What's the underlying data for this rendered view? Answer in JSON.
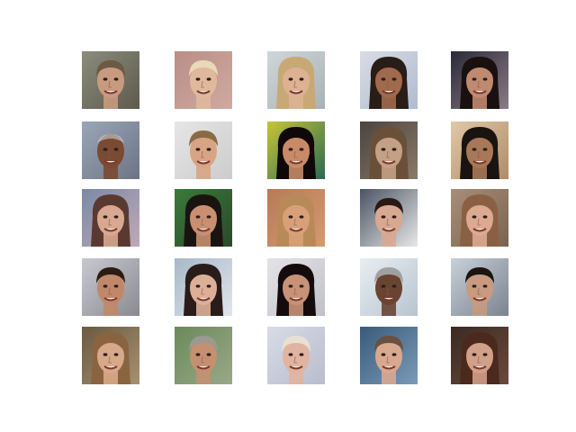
{
  "figure": {
    "background": "#ffffff",
    "rows": 5,
    "cols": 5,
    "tiles": [
      {
        "bg": "#8a8c7c",
        "bg2": "#5e5a4c",
        "skin": "#c89a80",
        "hair": "#6b5a44",
        "hair_style": "short"
      },
      {
        "bg": "#b98e86",
        "bg2": "#cfaaa0",
        "skin": "#e0b89c",
        "hair": "#e8d9b8",
        "hair_style": "short"
      },
      {
        "bg": "#cfd6d8",
        "bg2": "#a8b2b6",
        "skin": "#dcb293",
        "hair": "#c8a874",
        "hair_style": "long"
      },
      {
        "bg": "#d8dce4",
        "bg2": "#b0bcd0",
        "skin": "#a06a4c",
        "hair": "#2a1c16",
        "hair_style": "long"
      },
      {
        "bg": "#2a2a38",
        "bg2": "#8a7c84",
        "skin": "#c08a70",
        "hair": "#1a1010",
        "hair_style": "long"
      },
      {
        "bg": "#9aa6b8",
        "bg2": "#6c7484",
        "skin": "#7a4a32",
        "hair": "#cfcfcf",
        "hair_style": "bald"
      },
      {
        "bg": "#e6e6e6",
        "bg2": "#cccccc",
        "skin": "#d8a484",
        "hair": "#8a6a44",
        "hair_style": "short"
      },
      {
        "bg": "#c8c438",
        "bg2": "#2a6a52",
        "skin": "#c88a68",
        "hair": "#100808",
        "hair_style": "long"
      },
      {
        "bg": "#4a4440",
        "bg2": "#8a7a68",
        "skin": "#c4a084",
        "hair": "#6a5038",
        "hair_style": "long"
      },
      {
        "bg": "#e0c8a8",
        "bg2": "#b08c68",
        "skin": "#a87858",
        "hair": "#1a1410",
        "hair_style": "long"
      },
      {
        "bg": "#7a8aa6",
        "bg2": "#c0a8b8",
        "skin": "#d8a890",
        "hair": "#5a3a30",
        "hair_style": "long"
      },
      {
        "bg": "#3a7a3a",
        "bg2": "#2a4a2a",
        "skin": "#c89070",
        "hair": "#1a1410",
        "hair_style": "long"
      },
      {
        "bg": "#b87a58",
        "bg2": "#d49a70",
        "skin": "#d8a078",
        "hair": "#b88a58",
        "hair_style": "long"
      },
      {
        "bg": "#4a5464",
        "bg2": "#e8e8e8",
        "skin": "#d8a890",
        "hair": "#2a1a14",
        "hair_style": "short"
      },
      {
        "bg": "#a88e78",
        "bg2": "#7a6450",
        "skin": "#dcaa90",
        "hair": "#8a6044",
        "hair_style": "long"
      },
      {
        "bg": "#c8c8d0",
        "bg2": "#8a8a90",
        "skin": "#c08868",
        "hair": "#2a1c14",
        "hair_style": "short"
      },
      {
        "bg": "#a8b8c8",
        "bg2": "#e0e6ec",
        "skin": "#dcb098",
        "hair": "#2a1c18",
        "hair_style": "long"
      },
      {
        "bg": "#e4e4e8",
        "bg2": "#c0c0c8",
        "skin": "#c89278",
        "hair": "#140c0c",
        "hair_style": "long"
      },
      {
        "bg": "#e8eef2",
        "bg2": "#b8c4d0",
        "skin": "#6a4432",
        "hair": "#a0a0a0",
        "hair_style": "short"
      },
      {
        "bg": "#c8d0d8",
        "bg2": "#7a8490",
        "skin": "#c89a80",
        "hair": "#1c1410",
        "hair_style": "short"
      },
      {
        "bg": "#6a5a40",
        "bg2": "#a89070",
        "skin": "#d8a88a",
        "hair": "#8a6440",
        "hair_style": "long"
      },
      {
        "bg": "#6a8a5a",
        "bg2": "#9aa888",
        "skin": "#c49070",
        "hair": "#9a9a90",
        "hair_style": "short"
      },
      {
        "bg": "#d8dce8",
        "bg2": "#b8bccc",
        "skin": "#e0b4a0",
        "hair": "#e8e0d0",
        "hair_style": "short"
      },
      {
        "bg": "#3a5a7a",
        "bg2": "#7a9ab8",
        "skin": "#d8a890",
        "hair": "#6a5040",
        "hair_style": "short"
      },
      {
        "bg": "#3a2a24",
        "bg2": "#6a4a3a",
        "skin": "#d0a088",
        "hair": "#4a2a1c",
        "hair_style": "long"
      }
    ]
  }
}
